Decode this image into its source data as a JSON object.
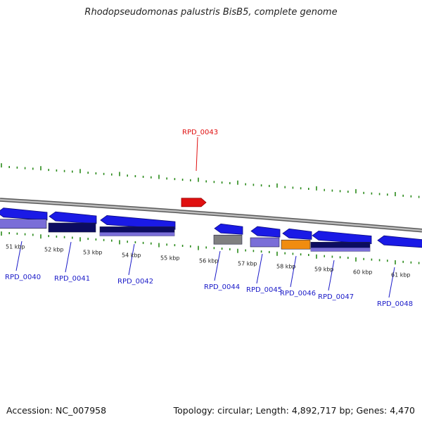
{
  "title": "Rhodopseudomonas palustris BisB5, complete genome",
  "accession_text": "Accession: NC_007958",
  "topology_text": "Topology: circular; Length: 4,892,717 bp; Genes: 4,470",
  "colors": {
    "forward_gene": "#1a1ae6",
    "backbone": "#8c8c8c",
    "tick": "#2a8a1a",
    "label_normal": "#1a1ac8",
    "label_highlight": "#e01010",
    "highlight_gene": "#e01010",
    "cds_light": "#7a6ed8",
    "cds_dark": "#0c0c60",
    "cds_gray": "#808080",
    "cds_orange": "#f08c10"
  },
  "kbp_labels": [
    "51 kbp",
    "52 kbp",
    "53 kbp",
    "54 kbp",
    "55 kbp",
    "56 kbp",
    "57 kbp",
    "58 kbp",
    "59 kbp",
    "60 kbp",
    "61 kbp"
  ],
  "genes": [
    {
      "name": "RPD_0040",
      "kind": "reverse",
      "highlight": false
    },
    {
      "name": "RPD_0041",
      "kind": "reverse",
      "highlight": false
    },
    {
      "name": "RPD_0042",
      "kind": "reverse",
      "highlight": false
    },
    {
      "name": "RPD_0043",
      "kind": "forward",
      "highlight": true
    },
    {
      "name": "RPD_0044",
      "kind": "reverse",
      "highlight": false
    },
    {
      "name": "RPD_0045",
      "kind": "reverse",
      "highlight": false
    },
    {
      "name": "RPD_0046",
      "kind": "reverse",
      "highlight": false
    },
    {
      "name": "RPD_0047",
      "kind": "reverse",
      "highlight": false
    },
    {
      "name": "RPD_0048",
      "kind": "reverse",
      "highlight": false
    }
  ]
}
